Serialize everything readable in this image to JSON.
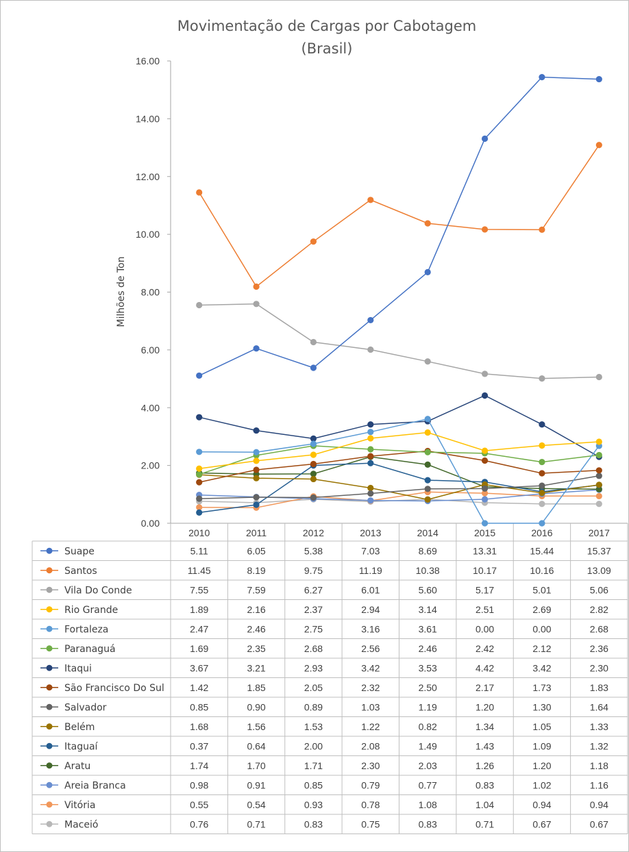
{
  "chart_data": {
    "type": "line",
    "title": "Movimentação de Cargas por Cabotagem",
    "subtitle": "(Brasil)",
    "ylabel": "Milhões de Ton",
    "xlabel": "",
    "ylim": [
      0,
      16
    ],
    "yticks": [
      "0.00",
      "2.00",
      "4.00",
      "6.00",
      "8.00",
      "10.00",
      "12.00",
      "14.00",
      "16.00"
    ],
    "grid": false,
    "legend": "data-table-below",
    "categories": [
      "2010",
      "2011",
      "2012",
      "2013",
      "2014",
      "2015",
      "2016",
      "2017"
    ],
    "series": [
      {
        "name": "Suape",
        "color": "#4472c4",
        "values": [
          5.11,
          6.05,
          5.38,
          7.03,
          8.69,
          13.31,
          15.44,
          15.37
        ],
        "labels": [
          "5.11",
          "6.05",
          "5.38",
          "7.03",
          "8.69",
          "13.31",
          "15.44",
          "15.37"
        ]
      },
      {
        "name": "Santos",
        "color": "#ed7d31",
        "values": [
          11.45,
          8.19,
          9.75,
          11.19,
          10.38,
          10.17,
          10.16,
          13.09
        ],
        "labels": [
          "11.45",
          "8.19",
          "9.75",
          "11.19",
          "10.38",
          "10.17",
          "10.16",
          "13.09"
        ]
      },
      {
        "name": "Vila Do Conde",
        "color": "#a5a5a5",
        "values": [
          7.55,
          7.59,
          6.27,
          6.01,
          5.6,
          5.17,
          5.01,
          5.06
        ],
        "labels": [
          "7.55",
          "7.59",
          "6.27",
          "6.01",
          "5.60",
          "5.17",
          "5.01",
          "5.06"
        ]
      },
      {
        "name": "Rio Grande",
        "color": "#ffc000",
        "values": [
          1.89,
          2.16,
          2.37,
          2.94,
          3.14,
          2.51,
          2.69,
          2.82
        ],
        "labels": [
          "1.89",
          "2.16",
          "2.37",
          "2.94",
          "3.14",
          "2.51",
          "2.69",
          "2.82"
        ]
      },
      {
        "name": "Fortaleza",
        "color": "#5b9bd5",
        "values": [
          2.47,
          2.46,
          2.75,
          3.16,
          3.61,
          0.0,
          0.0,
          2.68
        ],
        "labels": [
          "2.47",
          "2.46",
          "2.75",
          "3.16",
          "3.61",
          "0.00",
          "0.00",
          "2.68"
        ]
      },
      {
        "name": "Paranaguá",
        "color": "#70ad47",
        "values": [
          1.69,
          2.35,
          2.68,
          2.56,
          2.46,
          2.42,
          2.12,
          2.36
        ],
        "labels": [
          "1.69",
          "2.35",
          "2.68",
          "2.56",
          "2.46",
          "2.42",
          "2.12",
          "2.36"
        ]
      },
      {
        "name": "Itaqui",
        "color": "#264478",
        "values": [
          3.67,
          3.21,
          2.93,
          3.42,
          3.53,
          4.42,
          3.42,
          2.3
        ],
        "labels": [
          "3.67",
          "3.21",
          "2.93",
          "3.42",
          "3.53",
          "4.42",
          "3.42",
          "2.30"
        ]
      },
      {
        "name": "São Francisco Do Sul",
        "color": "#9e480e",
        "values": [
          1.42,
          1.85,
          2.05,
          2.32,
          2.5,
          2.17,
          1.73,
          1.83
        ],
        "labels": [
          "1.42",
          "1.85",
          "2.05",
          "2.32",
          "2.50",
          "2.17",
          "1.73",
          "1.83"
        ]
      },
      {
        "name": "Salvador",
        "color": "#636363",
        "values": [
          0.85,
          0.9,
          0.89,
          1.03,
          1.19,
          1.2,
          1.3,
          1.64
        ],
        "labels": [
          "0.85",
          "0.90",
          "0.89",
          "1.03",
          "1.19",
          "1.20",
          "1.30",
          "1.64"
        ]
      },
      {
        "name": "Belém",
        "color": "#997300",
        "values": [
          1.68,
          1.56,
          1.53,
          1.22,
          0.82,
          1.34,
          1.05,
          1.33
        ],
        "labels": [
          "1.68",
          "1.56",
          "1.53",
          "1.22",
          "0.82",
          "1.34",
          "1.05",
          "1.33"
        ]
      },
      {
        "name": "Itaguaí",
        "color": "#255e91",
        "values": [
          0.37,
          0.64,
          2.0,
          2.08,
          1.49,
          1.43,
          1.09,
          1.32
        ],
        "labels": [
          "0.37",
          "0.64",
          "2.00",
          "2.08",
          "1.49",
          "1.43",
          "1.09",
          "1.32"
        ]
      },
      {
        "name": "Aratu",
        "color": "#43682b",
        "values": [
          1.74,
          1.7,
          1.71,
          2.3,
          2.03,
          1.26,
          1.2,
          1.18
        ],
        "labels": [
          "1.74",
          "1.70",
          "1.71",
          "2.30",
          "2.03",
          "1.26",
          "1.20",
          "1.18"
        ]
      },
      {
        "name": "Areia Branca",
        "color": "#698ed0",
        "values": [
          0.98,
          0.91,
          0.85,
          0.79,
          0.77,
          0.83,
          1.02,
          1.16
        ],
        "labels": [
          "0.98",
          "0.91",
          "0.85",
          "0.79",
          "0.77",
          "0.83",
          "1.02",
          "1.16"
        ]
      },
      {
        "name": "Vitória",
        "color": "#f1975a",
        "values": [
          0.55,
          0.54,
          0.93,
          0.78,
          1.08,
          1.04,
          0.94,
          0.94
        ],
        "labels": [
          "0.55",
          "0.54",
          "0.93",
          "0.78",
          "1.08",
          "1.04",
          "0.94",
          "0.94"
        ]
      },
      {
        "name": "Maceió",
        "color": "#b7b7b7",
        "values": [
          0.76,
          0.71,
          0.83,
          0.75,
          0.83,
          0.71,
          0.67,
          0.67
        ],
        "labels": [
          "0.76",
          "0.71",
          "0.83",
          "0.75",
          "0.83",
          "0.71",
          "0.67",
          "0.67"
        ]
      }
    ]
  }
}
